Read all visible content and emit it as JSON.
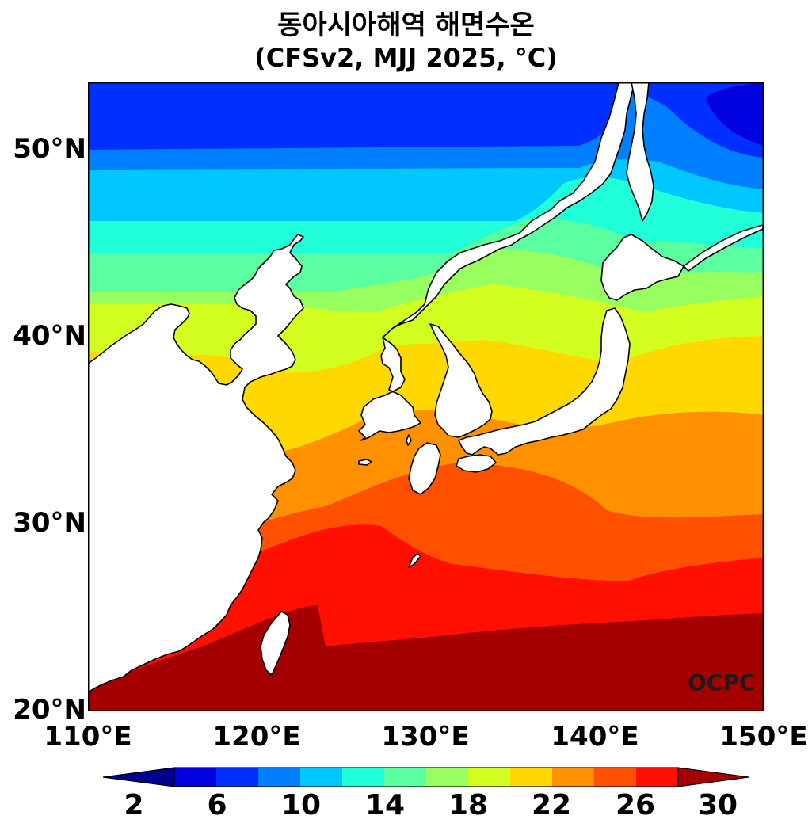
{
  "title": {
    "line1": "동아시아해역 해면수온",
    "line2": "(CFSv2, MJJ 2025, °C)"
  },
  "axes": {
    "y_ticks": [
      "20°N",
      "30°N",
      "40°N",
      "50°N"
    ],
    "x_ticks": [
      "110°E",
      "120°E",
      "130°E",
      "140°E",
      "150°E"
    ]
  },
  "watermark": "OCPC",
  "colorbar": {
    "tick_labels": [
      "2",
      "6",
      "10",
      "14",
      "18",
      "22",
      "26",
      "30"
    ],
    "colors": [
      "#00008f",
      "#0000e0",
      "#0030ff",
      "#0080ff",
      "#00c8ff",
      "#20ffd8",
      "#5cffa0",
      "#98ff60",
      "#d2ff20",
      "#ffd800",
      "#ff9000",
      "#ff5000",
      "#ff1000",
      "#a40000"
    ]
  },
  "chart_data": {
    "type": "heatmap",
    "title": "동아시아해역 해면수온 (CFSv2, MJJ 2025, °C)",
    "x_range_deg_E": [
      110,
      150
    ],
    "y_range_deg_N": [
      20,
      53.5
    ],
    "units": "°C",
    "levels": [
      2,
      4,
      6,
      8,
      10,
      12,
      14,
      16,
      18,
      20,
      22,
      24,
      26,
      28,
      30
    ],
    "extend": "both",
    "approx_zonal_sst": [
      {
        "lat": 21,
        "sst": 29
      },
      {
        "lat": 24,
        "sst": 28.5
      },
      {
        "lat": 27,
        "sst": 27
      },
      {
        "lat": 30,
        "sst": 25
      },
      {
        "lat": 33,
        "sst": 23
      },
      {
        "lat": 36,
        "sst": 21
      },
      {
        "lat": 39,
        "sst": 19
      },
      {
        "lat": 42,
        "sst": 15
      },
      {
        "lat": 45,
        "sst": 11
      },
      {
        "lat": 48,
        "sst": 9
      },
      {
        "lat": 52,
        "sst": 6
      }
    ]
  }
}
